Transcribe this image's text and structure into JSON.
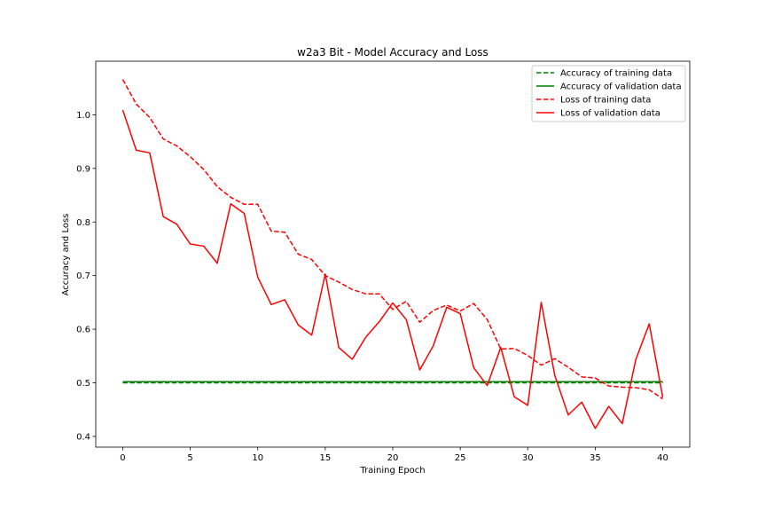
{
  "chart_data": {
    "type": "line",
    "title": "w2a3 Bit - Model Accuracy and Loss",
    "xlabel": "Training Epoch",
    "ylabel": "Accuracy and Loss",
    "xlim": [
      -2,
      42
    ],
    "ylim": [
      0.38,
      1.1
    ],
    "xticks": [
      0,
      5,
      10,
      15,
      20,
      25,
      30,
      35,
      40
    ],
    "yticks": [
      0.4,
      0.5,
      0.6,
      0.7,
      0.8,
      0.9,
      1.0
    ],
    "ytick_labels": [
      "0.4",
      "0.5",
      "0.6",
      "0.7",
      "0.8",
      "0.9",
      "1.0"
    ],
    "grid": false,
    "legend_position": "top-right",
    "x": [
      0,
      1,
      2,
      3,
      4,
      5,
      6,
      7,
      8,
      9,
      10,
      11,
      12,
      13,
      14,
      15,
      16,
      17,
      18,
      19,
      20,
      21,
      22,
      23,
      24,
      25,
      26,
      27,
      28,
      29,
      30,
      31,
      32,
      33,
      34,
      35,
      36,
      37,
      38,
      39,
      40
    ],
    "series": [
      {
        "name": "Accuracy of training data",
        "color": "#008000",
        "style": "dashed",
        "values": [
          0.5,
          0.5,
          0.5,
          0.5,
          0.5,
          0.5,
          0.5,
          0.5,
          0.5,
          0.5,
          0.5,
          0.5,
          0.5,
          0.5,
          0.5,
          0.5,
          0.5,
          0.5,
          0.5,
          0.5,
          0.5,
          0.5,
          0.5,
          0.5,
          0.5,
          0.5,
          0.5,
          0.5,
          0.5,
          0.5,
          0.5,
          0.5,
          0.5,
          0.5,
          0.5,
          0.5,
          0.5,
          0.5,
          0.5,
          0.5,
          0.5
        ]
      },
      {
        "name": "Accuracy of validation data",
        "color": "#008000",
        "style": "solid",
        "values": [
          0.502,
          0.502,
          0.502,
          0.502,
          0.502,
          0.502,
          0.502,
          0.502,
          0.502,
          0.502,
          0.502,
          0.502,
          0.502,
          0.502,
          0.502,
          0.502,
          0.502,
          0.502,
          0.502,
          0.502,
          0.502,
          0.502,
          0.502,
          0.502,
          0.502,
          0.502,
          0.502,
          0.502,
          0.502,
          0.502,
          0.502,
          0.502,
          0.502,
          0.502,
          0.502,
          0.502,
          0.502,
          0.502,
          0.502,
          0.502,
          0.502
        ]
      },
      {
        "name": "Loss of training data",
        "color": "#ff0000",
        "style": "dashed",
        "values": [
          1.066,
          1.02,
          0.995,
          0.955,
          0.942,
          0.922,
          0.898,
          0.866,
          0.846,
          0.833,
          0.833,
          0.783,
          0.781,
          0.74,
          0.73,
          0.7,
          0.688,
          0.674,
          0.666,
          0.666,
          0.637,
          0.652,
          0.613,
          0.635,
          0.645,
          0.634,
          0.648,
          0.618,
          0.563,
          0.564,
          0.551,
          0.533,
          0.545,
          0.529,
          0.511,
          0.509,
          0.494,
          0.492,
          0.491,
          0.487,
          0.47
        ]
      },
      {
        "name": "Loss of validation data",
        "color": "#ff0000",
        "style": "solid",
        "values": [
          1.009,
          0.934,
          0.929,
          0.81,
          0.796,
          0.759,
          0.755,
          0.723,
          0.834,
          0.816,
          0.697,
          0.646,
          0.655,
          0.608,
          0.589,
          0.703,
          0.566,
          0.544,
          0.585,
          0.614,
          0.649,
          0.618,
          0.524,
          0.569,
          0.641,
          0.629,
          0.528,
          0.495,
          0.566,
          0.474,
          0.458,
          0.65,
          0.514,
          0.44,
          0.464,
          0.415,
          0.456,
          0.424,
          0.543,
          0.61,
          0.473
        ]
      }
    ]
  }
}
